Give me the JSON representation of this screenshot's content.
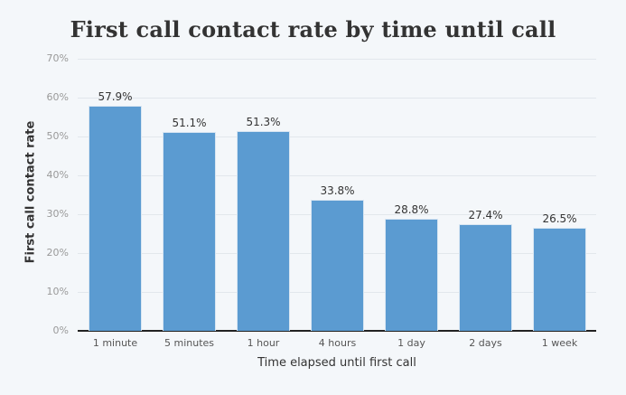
{
  "chart_data": {
    "type": "bar",
    "title": "First call contact rate by time until call",
    "xlabel": "Time elapsed until first call",
    "ylabel": "First call contact rate",
    "categories": [
      "1 minute",
      "5 minutes",
      "1 hour",
      "4 hours",
      "1 day",
      "2 days",
      "1 week"
    ],
    "values": [
      57.9,
      51.1,
      51.3,
      33.8,
      28.8,
      27.4,
      26.5
    ],
    "value_labels": [
      "57.9%",
      "51.1%",
      "51.3%",
      "33.8%",
      "28.8%",
      "27.4%",
      "26.5%"
    ],
    "ylim": [
      0,
      70
    ],
    "yticks": [
      "0%",
      "10%",
      "20%",
      "30%",
      "40%",
      "50%",
      "60%",
      "70%"
    ],
    "grid": true,
    "legend": null,
    "bar_color": "#5b9bd1"
  }
}
